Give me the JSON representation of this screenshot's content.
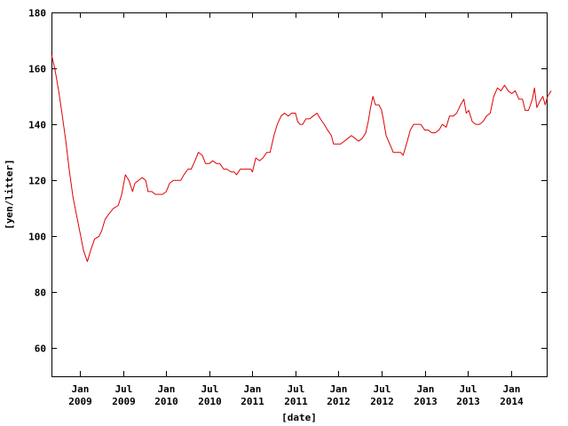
{
  "chart_data": {
    "type": "line",
    "title": "",
    "xlabel": "[date]",
    "ylabel": "[yen/litter]",
    "xlim": [
      "2008-09",
      "2014-06"
    ],
    "ylim": [
      50,
      180
    ],
    "grid": false,
    "y_ticks": [
      60,
      80,
      100,
      120,
      140,
      160,
      180
    ],
    "x_ticks": [
      {
        "date": "2009-01",
        "month": "Jan",
        "year": "2009"
      },
      {
        "date": "2009-07",
        "month": "Jul",
        "year": "2009"
      },
      {
        "date": "2010-01",
        "month": "Jan",
        "year": "2010"
      },
      {
        "date": "2010-07",
        "month": "Jul",
        "year": "2010"
      },
      {
        "date": "2011-01",
        "month": "Jan",
        "year": "2011"
      },
      {
        "date": "2011-07",
        "month": "Jul",
        "year": "2011"
      },
      {
        "date": "2012-01",
        "month": "Jan",
        "year": "2012"
      },
      {
        "date": "2012-07",
        "month": "Jul",
        "year": "2012"
      },
      {
        "date": "2013-01",
        "month": "Jan",
        "year": "2013"
      },
      {
        "date": "2013-07",
        "month": "Jul",
        "year": "2013"
      },
      {
        "date": "2014-01",
        "month": "Jan",
        "year": "2014"
      }
    ],
    "series": [
      {
        "color": "#e00000",
        "points": [
          [
            "2008-09-01",
            165
          ],
          [
            "2008-09-15",
            160
          ],
          [
            "2008-10-01",
            152
          ],
          [
            "2008-10-15",
            144
          ],
          [
            "2008-11-01",
            134
          ],
          [
            "2008-11-15",
            124
          ],
          [
            "2008-12-01",
            114
          ],
          [
            "2008-12-15",
            108
          ],
          [
            "2009-01-01",
            101
          ],
          [
            "2009-01-15",
            95
          ],
          [
            "2009-02-01",
            91
          ],
          [
            "2009-02-15",
            95
          ],
          [
            "2009-03-01",
            99
          ],
          [
            "2009-03-20",
            100
          ],
          [
            "2009-04-01",
            102
          ],
          [
            "2009-04-15",
            106
          ],
          [
            "2009-05-01",
            108
          ],
          [
            "2009-05-20",
            110
          ],
          [
            "2009-06-10",
            111
          ],
          [
            "2009-06-25",
            115
          ],
          [
            "2009-07-10",
            122
          ],
          [
            "2009-07-25",
            120
          ],
          [
            "2009-08-10",
            116
          ],
          [
            "2009-08-20",
            119
          ],
          [
            "2009-09-05",
            120
          ],
          [
            "2009-09-20",
            121
          ],
          [
            "2009-10-05",
            120
          ],
          [
            "2009-10-15",
            116
          ],
          [
            "2009-11-01",
            116
          ],
          [
            "2009-11-15",
            115
          ],
          [
            "2009-12-01",
            115
          ],
          [
            "2009-12-15",
            115
          ],
          [
            "2010-01-01",
            116
          ],
          [
            "2010-01-15",
            119
          ],
          [
            "2010-02-01",
            120
          ],
          [
            "2010-02-15",
            120
          ],
          [
            "2010-03-01",
            120
          ],
          [
            "2010-03-15",
            122
          ],
          [
            "2010-04-01",
            124
          ],
          [
            "2010-04-15",
            124
          ],
          [
            "2010-05-01",
            127
          ],
          [
            "2010-05-15",
            130
          ],
          [
            "2010-06-01",
            129
          ],
          [
            "2010-06-15",
            126
          ],
          [
            "2010-07-01",
            126
          ],
          [
            "2010-07-15",
            127
          ],
          [
            "2010-08-01",
            126
          ],
          [
            "2010-08-15",
            126
          ],
          [
            "2010-09-01",
            124
          ],
          [
            "2010-09-15",
            124
          ],
          [
            "2010-10-01",
            123
          ],
          [
            "2010-10-15",
            123
          ],
          [
            "2010-10-25",
            122
          ],
          [
            "2010-11-10",
            124
          ],
          [
            "2010-11-25",
            124
          ],
          [
            "2010-12-10",
            124
          ],
          [
            "2010-12-25",
            124
          ],
          [
            "2011-01-01",
            123
          ],
          [
            "2011-01-15",
            128
          ],
          [
            "2011-02-01",
            127
          ],
          [
            "2011-02-15",
            128
          ],
          [
            "2011-03-01",
            130
          ],
          [
            "2011-03-15",
            130
          ],
          [
            "2011-04-01",
            136
          ],
          [
            "2011-04-15",
            140
          ],
          [
            "2011-05-01",
            143
          ],
          [
            "2011-05-15",
            144
          ],
          [
            "2011-06-01",
            143
          ],
          [
            "2011-06-15",
            144
          ],
          [
            "2011-07-01",
            144
          ],
          [
            "2011-07-10",
            141
          ],
          [
            "2011-07-20",
            140
          ],
          [
            "2011-08-01",
            140
          ],
          [
            "2011-08-15",
            142
          ],
          [
            "2011-09-01",
            142
          ],
          [
            "2011-09-15",
            143
          ],
          [
            "2011-10-01",
            144
          ],
          [
            "2011-10-15",
            142
          ],
          [
            "2011-11-01",
            140
          ],
          [
            "2011-11-15",
            138
          ],
          [
            "2011-12-01",
            136
          ],
          [
            "2011-12-10",
            133
          ],
          [
            "2011-12-25",
            133
          ],
          [
            "2012-01-10",
            133
          ],
          [
            "2012-01-25",
            134
          ],
          [
            "2012-02-10",
            135
          ],
          [
            "2012-02-25",
            136
          ],
          [
            "2012-03-10",
            135
          ],
          [
            "2012-03-25",
            134
          ],
          [
            "2012-04-10",
            135
          ],
          [
            "2012-04-25",
            137
          ],
          [
            "2012-05-05",
            141
          ],
          [
            "2012-05-15",
            146
          ],
          [
            "2012-05-25",
            150
          ],
          [
            "2012-06-05",
            147
          ],
          [
            "2012-06-20",
            147
          ],
          [
            "2012-07-01",
            145
          ],
          [
            "2012-07-10",
            141
          ],
          [
            "2012-07-20",
            136
          ],
          [
            "2012-08-05",
            133
          ],
          [
            "2012-08-20",
            130
          ],
          [
            "2012-09-05",
            130
          ],
          [
            "2012-09-20",
            130
          ],
          [
            "2012-10-01",
            129
          ],
          [
            "2012-10-15",
            133
          ],
          [
            "2012-11-01",
            138
          ],
          [
            "2012-11-15",
            140
          ],
          [
            "2012-12-01",
            140
          ],
          [
            "2012-12-15",
            140
          ],
          [
            "2013-01-01",
            138
          ],
          [
            "2013-01-15",
            138
          ],
          [
            "2013-02-01",
            137
          ],
          [
            "2013-02-15",
            137
          ],
          [
            "2013-03-01",
            138
          ],
          [
            "2013-03-15",
            140
          ],
          [
            "2013-04-01",
            139
          ],
          [
            "2013-04-15",
            143
          ],
          [
            "2013-05-01",
            143
          ],
          [
            "2013-05-15",
            144
          ],
          [
            "2013-06-01",
            147
          ],
          [
            "2013-06-15",
            149
          ],
          [
            "2013-06-25",
            144
          ],
          [
            "2013-07-05",
            145
          ],
          [
            "2013-07-20",
            141
          ],
          [
            "2013-08-05",
            140
          ],
          [
            "2013-08-20",
            140
          ],
          [
            "2013-09-05",
            141
          ],
          [
            "2013-09-20",
            143
          ],
          [
            "2013-10-05",
            144
          ],
          [
            "2013-10-20",
            150
          ],
          [
            "2013-11-05",
            153
          ],
          [
            "2013-11-20",
            152
          ],
          [
            "2013-12-05",
            154
          ],
          [
            "2013-12-20",
            152
          ],
          [
            "2014-01-05",
            151
          ],
          [
            "2014-01-20",
            152
          ],
          [
            "2014-02-05",
            149
          ],
          [
            "2014-02-20",
            149
          ],
          [
            "2014-03-01",
            145
          ],
          [
            "2014-03-15",
            145
          ],
          [
            "2014-04-01",
            149
          ],
          [
            "2014-04-10",
            153
          ],
          [
            "2014-04-20",
            146
          ],
          [
            "2014-05-01",
            148
          ],
          [
            "2014-05-15",
            150
          ],
          [
            "2014-05-25",
            147
          ],
          [
            "2014-06-05",
            150
          ],
          [
            "2014-06-20",
            152
          ]
        ]
      }
    ]
  }
}
